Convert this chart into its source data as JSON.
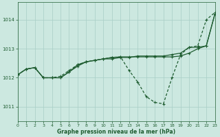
{
  "bg_color": "#cce8e0",
  "grid_color": "#a8cec6",
  "line_color": "#1e5c30",
  "xlabel": "Graphe pression niveau de la mer (hPa)",
  "xlim": [
    0,
    23
  ],
  "ylim": [
    1010.5,
    1014.6
  ],
  "yticks": [
    1011,
    1012,
    1013,
    1014
  ],
  "xticks": [
    0,
    1,
    2,
    3,
    4,
    5,
    6,
    7,
    8,
    9,
    10,
    11,
    12,
    13,
    14,
    15,
    16,
    17,
    18,
    19,
    20,
    21,
    22,
    23
  ],
  "series1_x": [
    0,
    1,
    2,
    3,
    4,
    5,
    6,
    7,
    8,
    9,
    10,
    11,
    12,
    13,
    14,
    15,
    16,
    17,
    18,
    19,
    20,
    21,
    22,
    23
  ],
  "series1_y": [
    1012.1,
    1012.3,
    1012.35,
    1012.0,
    1012.0,
    1012.0,
    1012.2,
    1012.4,
    1012.55,
    1012.6,
    1012.65,
    1012.65,
    1012.7,
    1012.7,
    1012.75,
    1012.75,
    1012.75,
    1012.75,
    1012.8,
    1012.85,
    1013.05,
    1013.05,
    1013.1,
    1014.2
  ],
  "series2_x": [
    0,
    1,
    2,
    3,
    4,
    5,
    6,
    7,
    8,
    9,
    10,
    11,
    12,
    13,
    14,
    15,
    16,
    17,
    18,
    19,
    20,
    21,
    22,
    23
  ],
  "series2_y": [
    1012.1,
    1012.3,
    1012.35,
    1012.0,
    1012.0,
    1012.05,
    1012.25,
    1012.45,
    1012.55,
    1012.6,
    1012.65,
    1012.7,
    1012.72,
    1012.25,
    1011.85,
    1011.35,
    1011.15,
    1011.1,
    1012.0,
    1012.8,
    1013.05,
    1013.1,
    1014.0,
    1014.25
  ],
  "series3_x": [
    0,
    1,
    2,
    3,
    4,
    5,
    6,
    7,
    8,
    9,
    10,
    11,
    12,
    13,
    14,
    15,
    16,
    17,
    18,
    19,
    20,
    21,
    22,
    23
  ],
  "series3_y": [
    1012.1,
    1012.3,
    1012.35,
    1012.0,
    1012.0,
    1012.0,
    1012.2,
    1012.45,
    1012.55,
    1012.6,
    1012.65,
    1012.7,
    1012.72,
    1012.72,
    1012.72,
    1012.72,
    1012.72,
    1012.72,
    1012.72,
    1012.75,
    1012.85,
    1013.0,
    1013.1,
    1014.2
  ]
}
